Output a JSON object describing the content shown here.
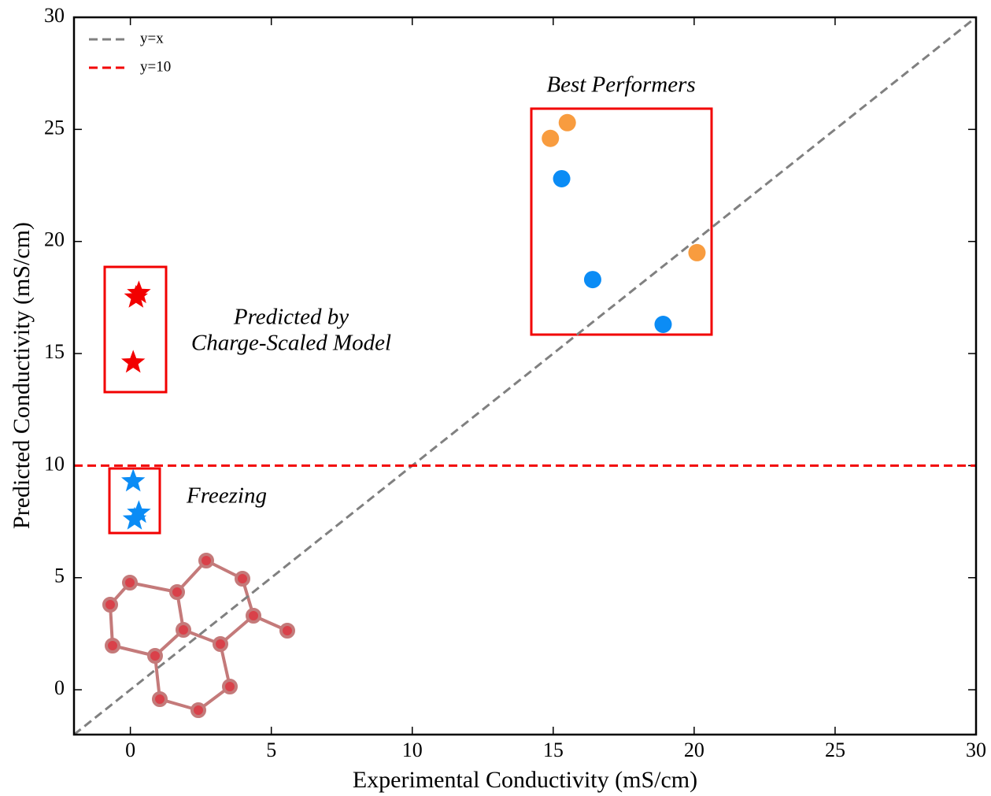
{
  "chart_data": {
    "type": "scatter",
    "xlabel": "Experimental Conductivity (mS/cm)",
    "ylabel": "Predicted Conductivity (mS/cm)",
    "xlim": [
      -2,
      30
    ],
    "ylim": [
      -2,
      30
    ],
    "xticks": [
      0,
      5,
      10,
      15,
      20,
      25,
      30
    ],
    "yticks": [
      0,
      5,
      10,
      15,
      20,
      25,
      30
    ],
    "legend": "upper left",
    "series": [
      {
        "marker": "circle",
        "color": "#f89c3f",
        "x": [
          14.9,
          15.5,
          20.1
        ],
        "values": [
          24.6,
          25.3,
          19.5
        ]
      },
      {
        "marker": "circle",
        "color": "#0b8cf5",
        "x": [
          15.3,
          16.4,
          18.9
        ],
        "values": [
          22.8,
          18.3,
          16.3
        ]
      },
      {
        "marker": "star",
        "color": "#f20000",
        "x": [
          0.3,
          0.2,
          0.1
        ],
        "values": [
          17.7,
          17.5,
          14.6
        ]
      },
      {
        "marker": "star",
        "color": "#0b8cf5",
        "x": [
          0.1,
          0.3,
          0.15
        ],
        "values": [
          9.3,
          7.9,
          7.6
        ]
      }
    ],
    "reference_lines": [
      {
        "name": "y=x",
        "kind": "identity",
        "color": "#808080"
      },
      {
        "name": "y=10",
        "kind": "horizontal",
        "y": 10,
        "color": "#f20000"
      }
    ],
    "annotations": [
      "Best Performers",
      "Predicted by",
      "Charge-Scaled Model",
      "Freezing"
    ]
  }
}
